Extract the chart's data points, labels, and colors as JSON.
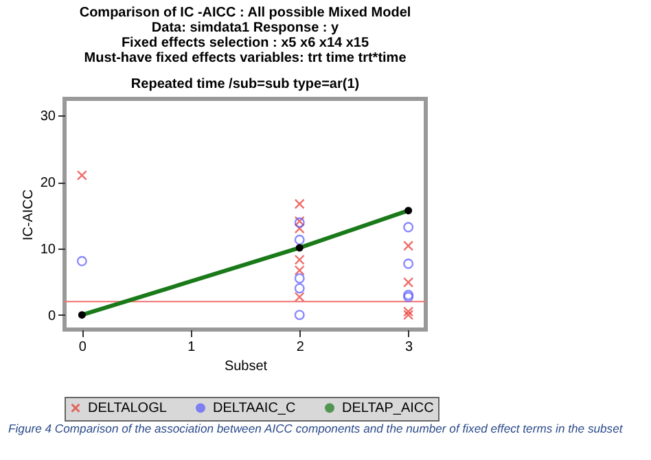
{
  "chart_data": {
    "type": "scatter",
    "title": "Comparison of IC -AICC : All possible Mixed Model\nData: simdata1 Response : y\nFixed effects selection :  x5  x6 x14 x15\nMust-have fixed effects variables: trt time trt*time",
    "subtitle": "Repeated time /sub=sub type=ar(1)",
    "xlabel": "Subset",
    "ylabel": "IC-AICC",
    "xlim": [
      -0.16,
      3.16
    ],
    "xticks": [
      0,
      1,
      2,
      3
    ],
    "ylim": [
      -2.2,
      32.5
    ],
    "yticks": [
      0,
      10,
      20,
      30
    ],
    "grid": false,
    "legend": "bottom",
    "series": [
      {
        "name": "DELTALOGL",
        "marker": "cross",
        "color": "#e8302c",
        "x": [
          0,
          2,
          2,
          2,
          2,
          2,
          2,
          3,
          3,
          3,
          3
        ],
        "values": [
          21.0,
          16.7,
          14.1,
          13.0,
          8.3,
          6.7,
          2.7,
          10.4,
          4.9,
          0.5,
          0
        ]
      },
      {
        "name": "DELTAAIC_C",
        "marker": "circle",
        "color": "#5a5aff",
        "x": [
          0,
          2,
          2,
          2,
          2,
          2,
          3,
          3,
          3,
          3
        ],
        "values": [
          8.1,
          13.9,
          11.3,
          5.5,
          4.0,
          0,
          13.2,
          7.7,
          3.0,
          2.7
        ]
      },
      {
        "name": "DELTAP_AICC",
        "type": "line",
        "marker": "circle",
        "color": "#1a7a1a",
        "x": [
          0,
          2,
          3
        ],
        "values": [
          0,
          10.1,
          15.7
        ]
      }
    ],
    "ref_lines": [
      {
        "axis": "y",
        "value": 2.0,
        "color": "#f07070"
      }
    ],
    "annotations": [
      "Figure 4 Comparison of the association between AICC components and the number of fixed effect terms in the subset"
    ]
  }
}
